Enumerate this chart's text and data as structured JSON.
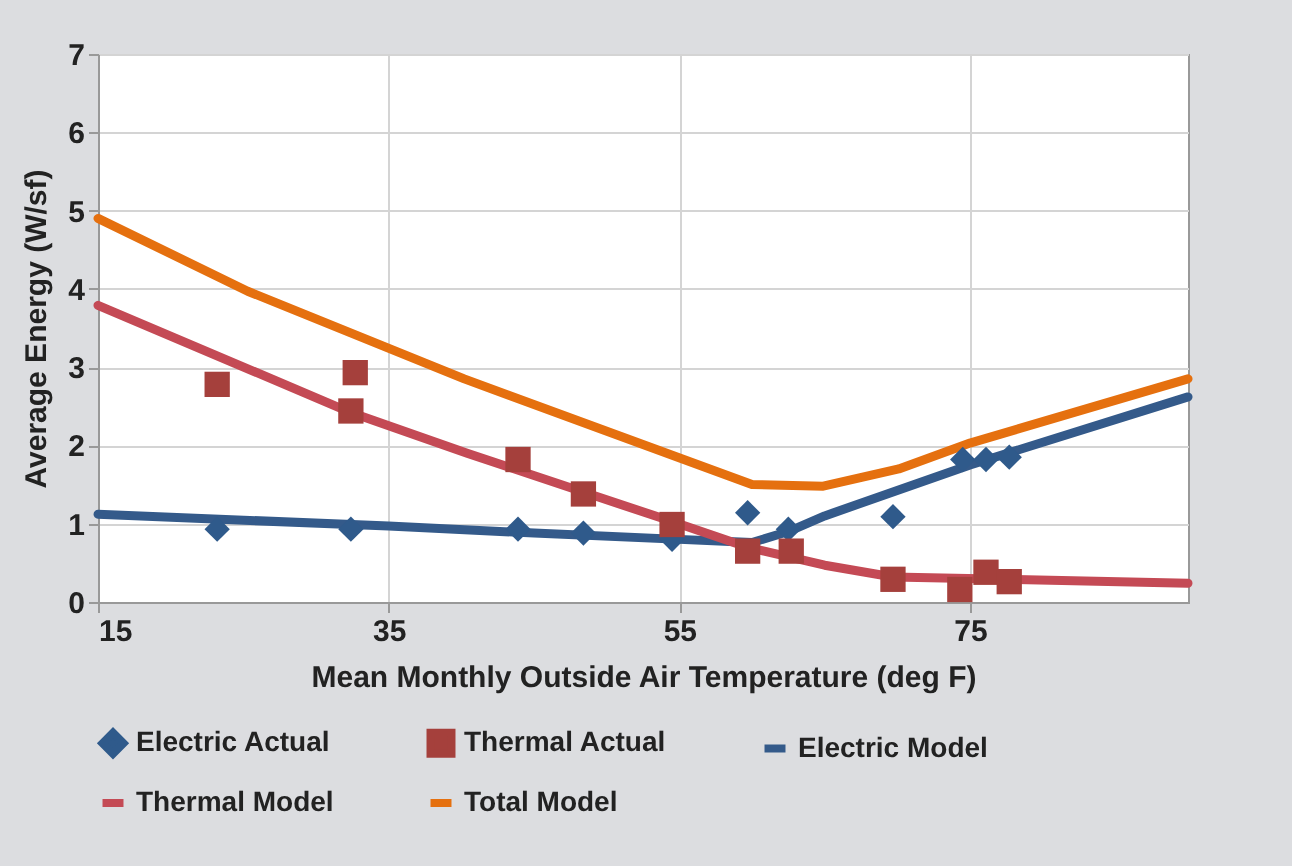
{
  "chart_data": {
    "type": "scatter",
    "xlabel": "Mean Monthly Outside Air Temperature (deg F)",
    "ylabel": "Average Energy (W/sf)",
    "xlim": [
      15,
      90
    ],
    "xticks": [
      15,
      35,
      55,
      75
    ],
    "ylim": [
      0,
      7
    ],
    "yticks": [
      0,
      1,
      2,
      3,
      4,
      5,
      6,
      7
    ],
    "grid": true,
    "legend": "bottom",
    "series": [
      {
        "name": "Electric Actual",
        "marker": "diamond",
        "color": "#2f5a8b",
        "x": [
          23.2,
          32.4,
          43.9,
          48.4,
          54.5,
          59.7,
          62.5,
          69.7,
          74.5,
          76.1,
          77.7
        ],
        "values": [
          0.93,
          0.93,
          0.93,
          0.88,
          0.8,
          1.14,
          0.93,
          1.09,
          1.82,
          1.82,
          1.85
        ]
      },
      {
        "name": "Thermal Actual",
        "marker": "square",
        "color": "#a5403c",
        "x": [
          23.2,
          32.7,
          32.4,
          43.9,
          48.4,
          54.5,
          59.7,
          62.7,
          69.7,
          74.3,
          76.1,
          77.7
        ],
        "values": [
          2.78,
          2.93,
          2.44,
          1.82,
          1.38,
          0.99,
          0.65,
          0.65,
          0.29,
          0.16,
          0.38,
          0.26
        ]
      },
      {
        "name": "Electric Model",
        "type": "line",
        "color": "#345a8a",
        "x": [
          15,
          35,
          45,
          55,
          60,
          62.5,
          65,
          75,
          90
        ],
        "values": [
          1.12,
          0.97,
          0.88,
          0.8,
          0.76,
          0.9,
          1.1,
          1.75,
          2.62
        ]
      },
      {
        "name": "Thermal Model",
        "type": "line",
        "color": "#c44a55",
        "x": [
          15,
          32.4,
          40.4,
          54.3,
          59.7,
          65,
          69.7,
          90
        ],
        "values": [
          3.79,
          2.42,
          1.9,
          1.04,
          0.7,
          0.47,
          0.32,
          0.24
        ]
      },
      {
        "name": "Total Model",
        "type": "line",
        "color": "#e5700f",
        "x": [
          15,
          25.3,
          40.2,
          60,
          64.9,
          70.1,
          75,
          90
        ],
        "values": [
          4.9,
          3.97,
          2.85,
          1.5,
          1.48,
          1.7,
          2.03,
          2.85
        ]
      }
    ]
  }
}
